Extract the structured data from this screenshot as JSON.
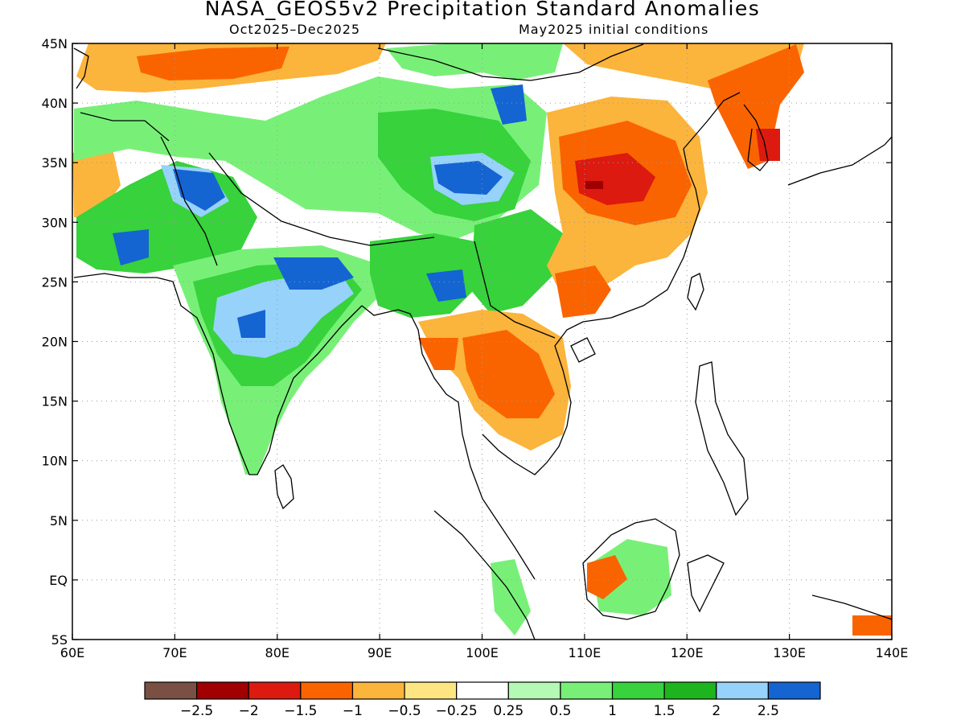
{
  "title": "NASA_GEOS5v2 Precipitation Standard Anomalies",
  "subtitle_left": "Oct2025–Dec2025",
  "subtitle_right": "May2025 initial conditions",
  "map": {
    "lon_range": [
      60,
      140
    ],
    "lat_range": [
      -5,
      45
    ],
    "lon_labels": [
      "60E",
      "70E",
      "80E",
      "90E",
      "100E",
      "110E",
      "120E",
      "130E",
      "140E"
    ],
    "lat_labels": [
      "45N",
      "40N",
      "35N",
      "30N",
      "25N",
      "20N",
      "15N",
      "10N",
      "5N",
      "EQ",
      "5S"
    ],
    "grid": "dotted"
  },
  "colorbar": {
    "colors": [
      "#7a5044",
      "#a00000",
      "#dc1a10",
      "#fa6400",
      "#fbb43c",
      "#fde682",
      "#ffffff",
      "#b4fab4",
      "#78f078",
      "#37d23c",
      "#1eb41e",
      "#96d2fa",
      "#1464d2"
    ],
    "labels": [
      "−2.5",
      "−2",
      "−1.5",
      "−1",
      "−0.5",
      "−0.25",
      "0.25",
      "0.5",
      "1",
      "1.5",
      "2",
      "2.5"
    ]
  },
  "chart_data": {
    "type": "heatmap",
    "variable": "Precipitation Standard Anomalies",
    "xlabel": "",
    "ylabel": "",
    "xlim": [
      60,
      140
    ],
    "ylim": [
      -5,
      45
    ],
    "levels": [
      -2.5,
      -2,
      -1.5,
      -1,
      -0.5,
      -0.25,
      0.25,
      0.5,
      1,
      1.5,
      2,
      2.5
    ]
  }
}
